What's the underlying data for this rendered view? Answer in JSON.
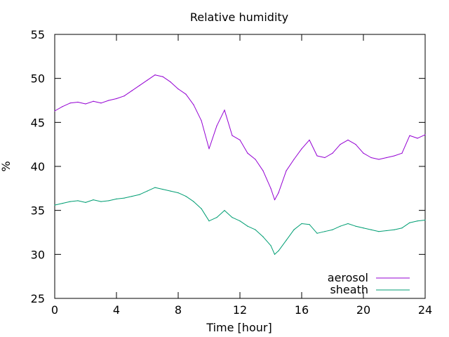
{
  "chart_data": {
    "type": "line",
    "title": "Relative humidity",
    "xlabel": "Time [hour]",
    "ylabel": "%",
    "xlim": [
      0,
      24
    ],
    "ylim": [
      25,
      55
    ],
    "x_ticks": [
      0,
      4,
      8,
      12,
      16,
      20,
      24
    ],
    "y_ticks": [
      25,
      30,
      35,
      40,
      45,
      50,
      55
    ],
    "grid": false,
    "legend_position": "bottom-right",
    "series": [
      {
        "name": "aerosol",
        "color": "#9400d3",
        "x": [
          0,
          0.5,
          1,
          1.5,
          2,
          2.5,
          3,
          3.5,
          4,
          4.5,
          5,
          5.5,
          6,
          6.5,
          7,
          7.5,
          8,
          8.5,
          9,
          9.5,
          10,
          10.5,
          11,
          11.5,
          12,
          12.5,
          13,
          13.5,
          14,
          14.25,
          14.5,
          15,
          15.5,
          16,
          16.5,
          17,
          17.5,
          18,
          18.5,
          19,
          19.5,
          20,
          20.5,
          21,
          21.5,
          22,
          22.5,
          23,
          23.5,
          24
        ],
        "y": [
          46.3,
          46.8,
          47.2,
          47.3,
          47.1,
          47.4,
          47.2,
          47.5,
          47.7,
          48.0,
          48.6,
          49.2,
          49.8,
          50.4,
          50.2,
          49.6,
          48.8,
          48.2,
          47.0,
          45.2,
          42.0,
          44.6,
          46.4,
          43.5,
          43.0,
          41.5,
          40.8,
          39.5,
          37.5,
          36.2,
          37.0,
          39.5,
          40.8,
          42.0,
          43.0,
          41.2,
          41.0,
          41.5,
          42.5,
          43.0,
          42.5,
          41.5,
          41.0,
          40.8,
          41.0,
          41.2,
          41.5,
          43.5,
          43.2,
          43.6
        ]
      },
      {
        "name": "sheath",
        "color": "#009e73",
        "x": [
          0,
          0.5,
          1,
          1.5,
          2,
          2.5,
          3,
          3.5,
          4,
          4.5,
          5,
          5.5,
          6,
          6.5,
          7,
          7.5,
          8,
          8.5,
          9,
          9.5,
          10,
          10.5,
          11,
          11.5,
          12,
          12.5,
          13,
          13.5,
          14,
          14.25,
          14.5,
          15,
          15.5,
          16,
          16.5,
          17,
          17.5,
          18,
          18.5,
          19,
          19.5,
          20,
          20.5,
          21,
          21.5,
          22,
          22.5,
          23,
          23.5,
          24
        ],
        "y": [
          35.6,
          35.8,
          36.0,
          36.1,
          35.9,
          36.2,
          36.0,
          36.1,
          36.3,
          36.4,
          36.6,
          36.8,
          37.2,
          37.6,
          37.4,
          37.2,
          37.0,
          36.6,
          36.0,
          35.2,
          33.8,
          34.2,
          35.0,
          34.2,
          33.8,
          33.2,
          32.8,
          32.0,
          31.0,
          30.0,
          30.4,
          31.6,
          32.8,
          33.5,
          33.4,
          32.4,
          32.6,
          32.8,
          33.2,
          33.5,
          33.2,
          33.0,
          32.8,
          32.6,
          32.7,
          32.8,
          33.0,
          33.6,
          33.8,
          33.9
        ]
      }
    ]
  }
}
